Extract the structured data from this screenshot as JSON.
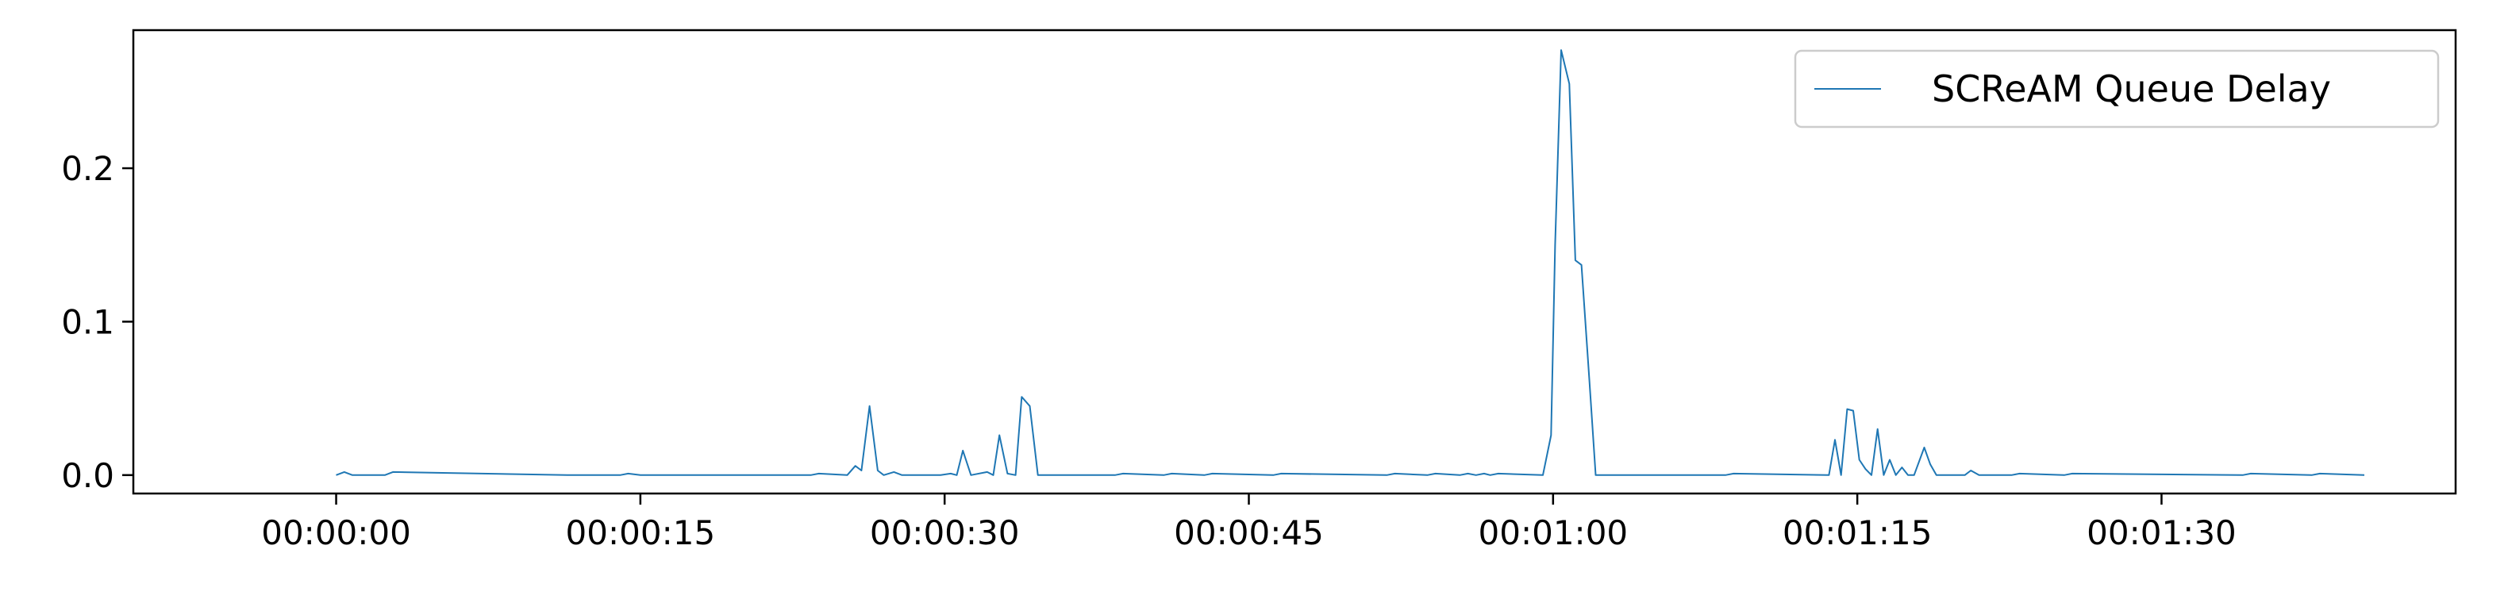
{
  "chart_data": {
    "type": "line",
    "title": "",
    "xlabel": "",
    "ylabel": "",
    "xlim": [
      -10,
      104.5
    ],
    "ylim": [
      -0.012,
      0.29
    ],
    "grid": false,
    "legend_position": "top-right",
    "x_ticks": [
      {
        "value": 0,
        "label": "00:00:00"
      },
      {
        "value": 15,
        "label": "00:00:15"
      },
      {
        "value": 30,
        "label": "00:00:30"
      },
      {
        "value": 45,
        "label": "00:00:45"
      },
      {
        "value": 60,
        "label": "00:01:00"
      },
      {
        "value": 75,
        "label": "00:01:15"
      },
      {
        "value": 90,
        "label": "00:01:30"
      }
    ],
    "y_ticks": [
      {
        "value": 0.0,
        "label": "0.0"
      },
      {
        "value": 0.1,
        "label": "0.1"
      },
      {
        "value": 0.2,
        "label": "0.2"
      }
    ],
    "series": [
      {
        "name": "SCReAM Queue Delay",
        "color": "#1f77b4",
        "x": [
          0,
          0.4,
          0.8,
          2.4,
          2.8,
          11.4,
          11.8,
          14,
          14.4,
          15,
          15.5,
          23.4,
          23.8,
          25.2,
          25.6,
          25.9,
          26.3,
          26.7,
          27,
          27.5,
          27.9,
          29.8,
          30.3,
          30.6,
          30.9,
          31.3,
          32.1,
          32.4,
          32.7,
          33.1,
          33.5,
          33.8,
          34.2,
          34.6,
          38.4,
          38.8,
          40.8,
          41.2,
          42.8,
          43.2,
          46.2,
          46.6,
          51.8,
          52.2,
          53.8,
          54.2,
          55.4,
          55.8,
          56.2,
          56.6,
          56.9,
          57.3,
          59.5,
          59.9,
          60.1,
          60.4,
          60.8,
          61.1,
          61.4,
          61.8,
          62.1,
          68.5,
          68.9,
          73.6,
          73.9,
          74.2,
          74.5,
          74.8,
          75.1,
          75.4,
          75.7,
          76.0,
          76.3,
          76.6,
          76.9,
          77.2,
          77.5,
          77.8,
          78.3,
          78.6,
          78.9,
          79.2,
          80.3,
          80.6,
          81,
          82.6,
          83,
          85.2,
          85.6,
          94,
          94.4,
          97.4,
          97.8,
          100
        ],
        "values": [
          0,
          0.002,
          0,
          0,
          0.002,
          0,
          0,
          0,
          0.001,
          0,
          0,
          0,
          0.001,
          0,
          0.006,
          0.003,
          0.045,
          0.003,
          0,
          0.002,
          0,
          0,
          0.001,
          0,
          0.016,
          0,
          0.002,
          0,
          0.026,
          0.001,
          0,
          0.051,
          0.045,
          0,
          0,
          0.001,
          0,
          0.001,
          0,
          0.001,
          0,
          0.001,
          0,
          0.001,
          0,
          0.001,
          0,
          0.001,
          0,
          0.001,
          0,
          0.001,
          0,
          0.026,
          0.15,
          0.277,
          0.255,
          0.14,
          0.137,
          0.06,
          0,
          0,
          0.001,
          0,
          0.023,
          0,
          0.043,
          0.042,
          0.01,
          0.004,
          0,
          0.03,
          0,
          0.01,
          0,
          0.005,
          0,
          0,
          0.018,
          0.007,
          0,
          0,
          0,
          0.003,
          0,
          0,
          0.001,
          0,
          0.001,
          0,
          0.001,
          0,
          0.001,
          0
        ]
      }
    ]
  }
}
